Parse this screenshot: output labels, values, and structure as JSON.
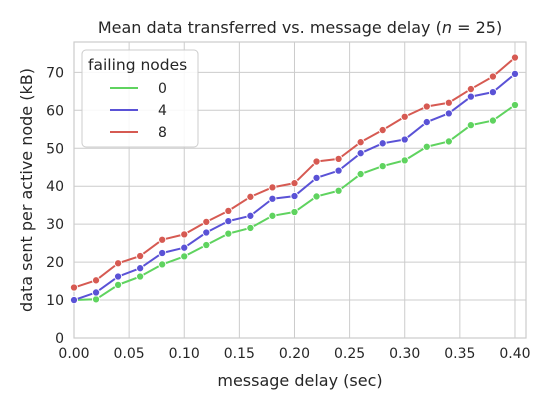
{
  "chart_data": {
    "type": "line",
    "title_prefix": "Mean data transferred vs. message delay (",
    "title_var": "n",
    "title_suffix": " = 25)",
    "xlabel": "message delay (sec)",
    "ylabel": "data sent per active node (kB)",
    "xlim": [
      0.0,
      0.41
    ],
    "ylim": [
      0,
      78
    ],
    "xticks": [
      "0.00",
      "0.05",
      "0.10",
      "0.15",
      "0.20",
      "0.25",
      "0.30",
      "0.35",
      "0.40"
    ],
    "yticks": [
      "0",
      "10",
      "20",
      "30",
      "40",
      "50",
      "60",
      "70"
    ],
    "grid": true,
    "legend_title": "failing nodes",
    "legend_position": "upper-left",
    "x": [
      0.0,
      0.02,
      0.04,
      0.06,
      0.08,
      0.1,
      0.12,
      0.14,
      0.16,
      0.18,
      0.2,
      0.22,
      0.24,
      0.26,
      0.28,
      0.3,
      0.32,
      0.34,
      0.36,
      0.38,
      0.4
    ],
    "series": [
      {
        "name": "0",
        "color": "#5fd35f",
        "values": [
          10.0,
          10.2,
          14.0,
          16.2,
          19.4,
          21.5,
          24.5,
          27.5,
          29.0,
          32.2,
          33.2,
          37.3,
          38.8,
          43.2,
          45.3,
          46.8,
          50.4,
          51.8,
          56.1,
          57.3,
          61.4
        ]
      },
      {
        "name": "4",
        "color": "#5a52d6",
        "values": [
          10.0,
          12.0,
          16.2,
          18.4,
          22.4,
          23.8,
          27.8,
          30.8,
          32.2,
          36.7,
          37.4,
          42.2,
          44.1,
          48.7,
          51.3,
          52.3,
          56.9,
          59.2,
          63.6,
          64.8,
          69.6
        ]
      },
      {
        "name": "8",
        "color": "#d65a52",
        "values": [
          13.3,
          15.2,
          19.7,
          21.6,
          25.9,
          27.3,
          30.6,
          33.5,
          37.2,
          39.7,
          40.8,
          46.5,
          47.2,
          51.6,
          54.8,
          58.3,
          61.0,
          62.0,
          65.6,
          68.9,
          73.9
        ]
      }
    ]
  }
}
